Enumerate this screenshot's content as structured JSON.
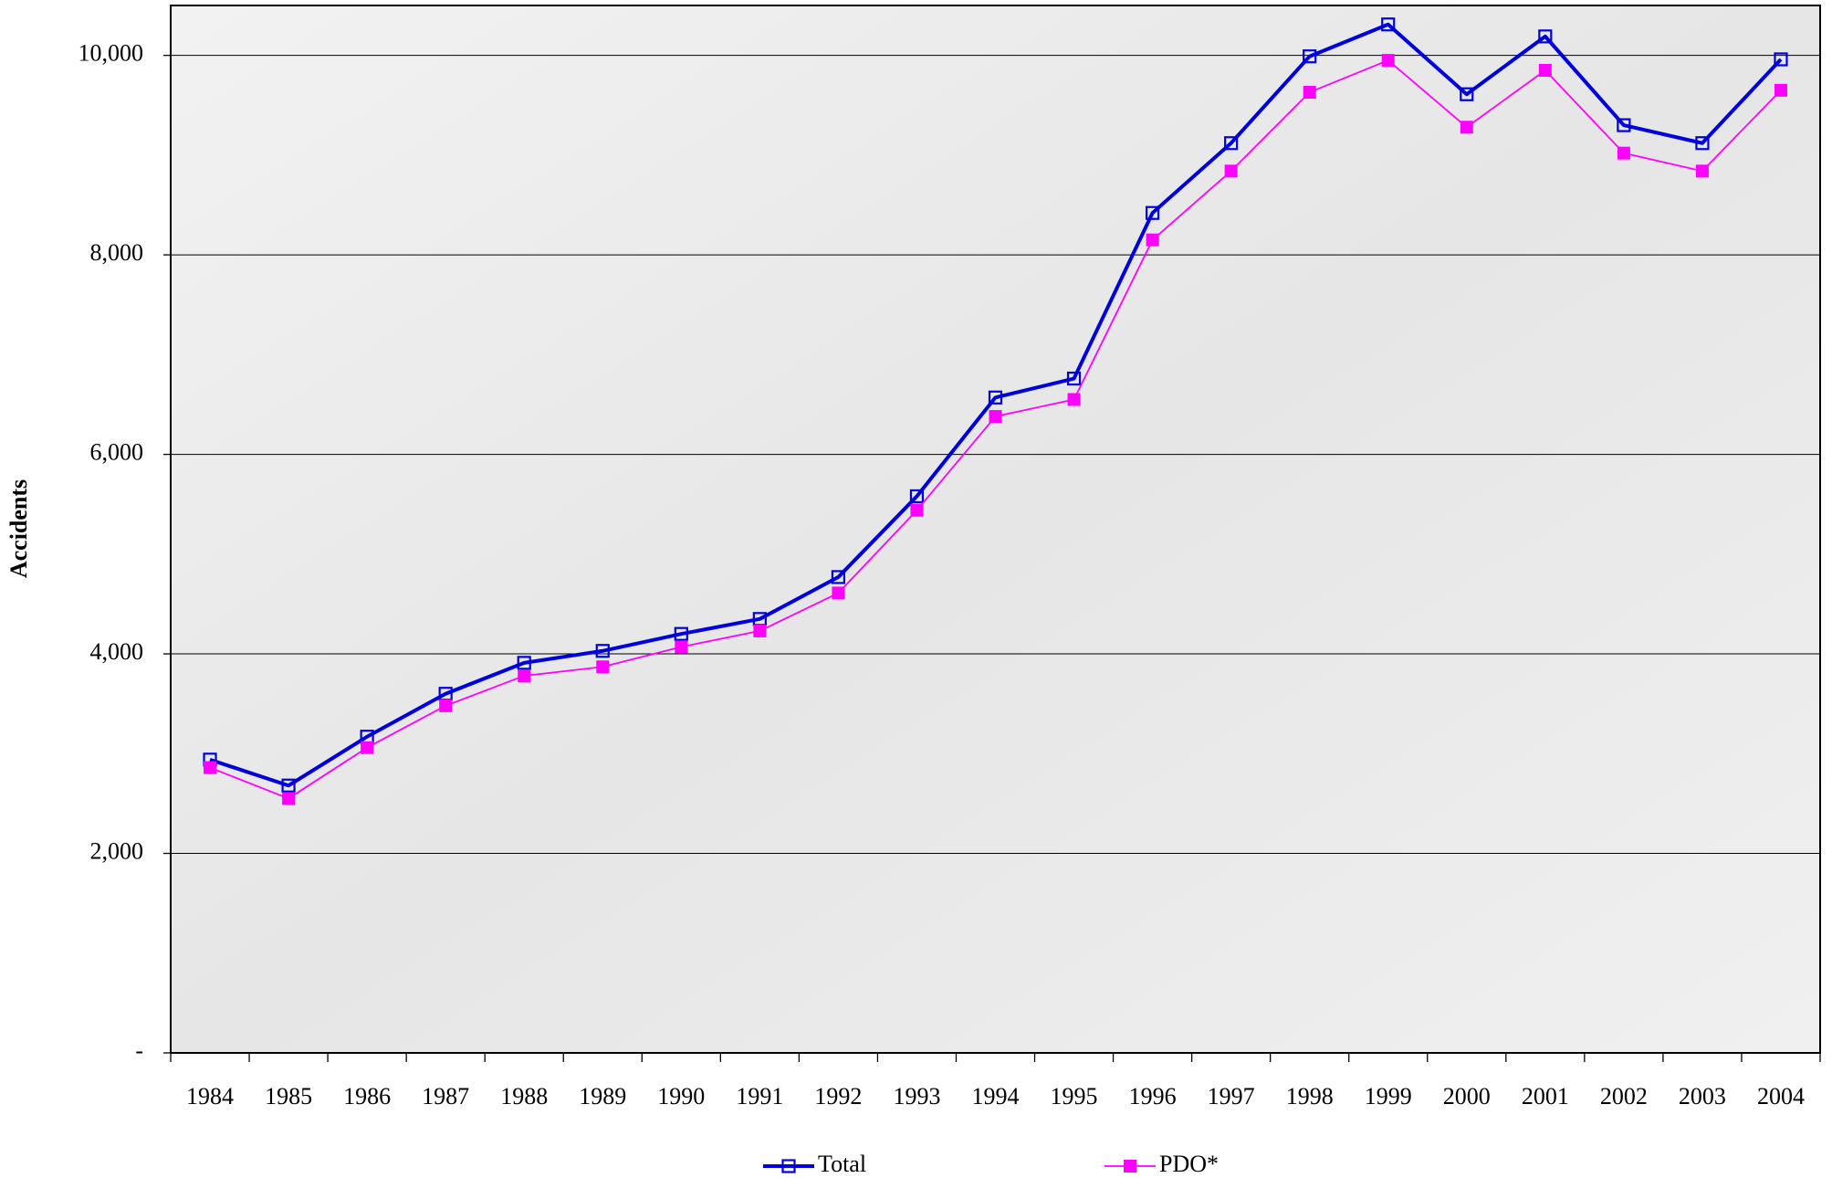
{
  "chart_data": {
    "type": "line",
    "y_label": "Accidents",
    "categories": [
      "1984",
      "1985",
      "1986",
      "1987",
      "1988",
      "1989",
      "1990",
      "1991",
      "1992",
      "1993",
      "1994",
      "1995",
      "1996",
      "1997",
      "1998",
      "1999",
      "2000",
      "2001",
      "2002",
      "2003",
      "2004"
    ],
    "series": [
      {
        "name": "Total",
        "color": "#0000dd",
        "marker": "open-square",
        "line_width": 4,
        "values": [
          2940,
          2680,
          3170,
          3600,
          3910,
          4030,
          4200,
          4350,
          4770,
          5580,
          6570,
          6760,
          8420,
          9120,
          9990,
          10310,
          9610,
          10190,
          9300,
          9120,
          9960
        ]
      },
      {
        "name": "PDO*",
        "color": "#ff00ff",
        "marker": "filled-square",
        "line_width": 1.8,
        "values": [
          2860,
          2550,
          3060,
          3480,
          3780,
          3870,
          4070,
          4230,
          4610,
          5440,
          6380,
          6550,
          8150,
          8840,
          9630,
          9950,
          9280,
          9850,
          9020,
          8840,
          9650
        ]
      }
    ],
    "ylim": [
      0,
      10500
    ],
    "yticks": [
      {
        "value": 0,
        "label": "-"
      },
      {
        "value": 2000,
        "label": "2,000"
      },
      {
        "value": 4000,
        "label": "4,000"
      },
      {
        "value": 6000,
        "label": "6,000"
      },
      {
        "value": 8000,
        "label": "8,000"
      },
      {
        "value": 10000,
        "label": "10,000"
      }
    ],
    "grid": true
  }
}
